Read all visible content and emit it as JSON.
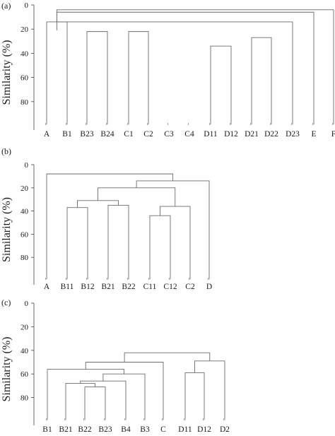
{
  "figure": {
    "panels": [
      {
        "id": "a",
        "label": "(a)",
        "ylabel": "Similarity (%)",
        "ticks": [
          0,
          20,
          40,
          60,
          80
        ],
        "ylim": [
          0,
          100
        ],
        "leaves": [
          "A",
          "B1",
          "B23",
          "B24",
          "C1",
          "C2",
          "C3",
          "C4",
          "D11",
          "D12",
          "D21",
          "D22",
          "D23",
          "E",
          "F"
        ],
        "leaf_label_texts": [
          "A",
          "B1",
          "B23",
          "B24",
          "C1",
          "C2",
          "C3",
          "C4",
          "D11",
          "D12",
          "D21",
          "D22",
          "D23",
          "E",
          "F"
        ],
        "merges": [
          {
            "a": "L0",
            "b": "L1",
            "sim": 14
          },
          {
            "a": "N0",
            "b": "N1",
            "sim": 9
          },
          {
            "a": "L2",
            "b": "L3",
            "sim": 22
          },
          {
            "a": "L4",
            "b": "L5",
            "sim": 22
          },
          {
            "a": "N0",
            "b": "N1",
            "sim": 8
          },
          {
            "a": "L8",
            "b": "L9",
            "sim": 34
          },
          {
            "a": "L10",
            "b": "L11",
            "sim": 27
          },
          {
            "a": "N0",
            "b": "N1",
            "sim": 21
          },
          {
            "a": "L12",
            "b": "N0",
            "sim": 14
          },
          {
            "a": "N0",
            "b": "N1",
            "sim": 6
          },
          {
            "a": "L13",
            "b": "N0",
            "sim": 6
          },
          {
            "a": "L14",
            "b": "N0",
            "sim": 4
          }
        ]
      },
      {
        "id": "b",
        "label": "(b)",
        "ylabel": "Similarity (%)",
        "ticks": [
          0,
          20,
          40,
          60,
          80
        ],
        "ylim": [
          0,
          100
        ],
        "leaves": [
          "A",
          "B11",
          "B12",
          "B21",
          "B22",
          "C11",
          "C12",
          "C2",
          "D"
        ],
        "leaf_label_texts": [
          "A",
          "B11",
          "B12",
          "B21",
          "B22",
          "C11",
          "C12",
          "C2",
          "D"
        ],
        "merges": [
          {
            "a": "L1",
            "b": "L2",
            "sim": 37
          },
          {
            "a": "L3",
            "b": "L4",
            "sim": 35
          },
          {
            "a": "N0",
            "b": "N1",
            "sim": 31
          },
          {
            "a": "L5",
            "b": "L6",
            "sim": 44
          },
          {
            "a": "N3",
            "b": "L7",
            "sim": 36
          },
          {
            "a": "N2",
            "b": "N4",
            "sim": 20
          },
          {
            "a": "N5",
            "b": "L8",
            "sim": 14
          },
          {
            "a": "L0",
            "b": "N6",
            "sim": 8
          }
        ]
      },
      {
        "id": "c",
        "label": "(c)",
        "ylabel": "Similarity (%)",
        "ticks": [
          0,
          20,
          40,
          60,
          80
        ],
        "ylim": [
          0,
          100
        ],
        "leaves": [
          "B1",
          "B21",
          "B22",
          "B23",
          "B4",
          "B3",
          "C",
          "D11",
          "D12",
          "D2"
        ],
        "leaf_label_texts": [
          "B1",
          "B21",
          "B22",
          "B23",
          "B4",
          "B3",
          "C",
          "D11",
          "D12",
          "D2"
        ],
        "merges": [
          {
            "a": "L2",
            "b": "L3",
            "sim": 71
          },
          {
            "a": "L1",
            "b": "N0",
            "sim": 68
          },
          {
            "a": "N1",
            "b": "L4",
            "sim": 66
          },
          {
            "a": "N2",
            "b": "L5",
            "sim": 60
          },
          {
            "a": "L0",
            "b": "N3",
            "sim": 56
          },
          {
            "a": "N4",
            "b": "L6",
            "sim": 50
          },
          {
            "a": "L7",
            "b": "L8",
            "sim": 59
          },
          {
            "a": "N6",
            "b": "L9",
            "sim": 49
          },
          {
            "a": "N5",
            "b": "N7",
            "sim": 42
          }
        ]
      }
    ]
  }
}
